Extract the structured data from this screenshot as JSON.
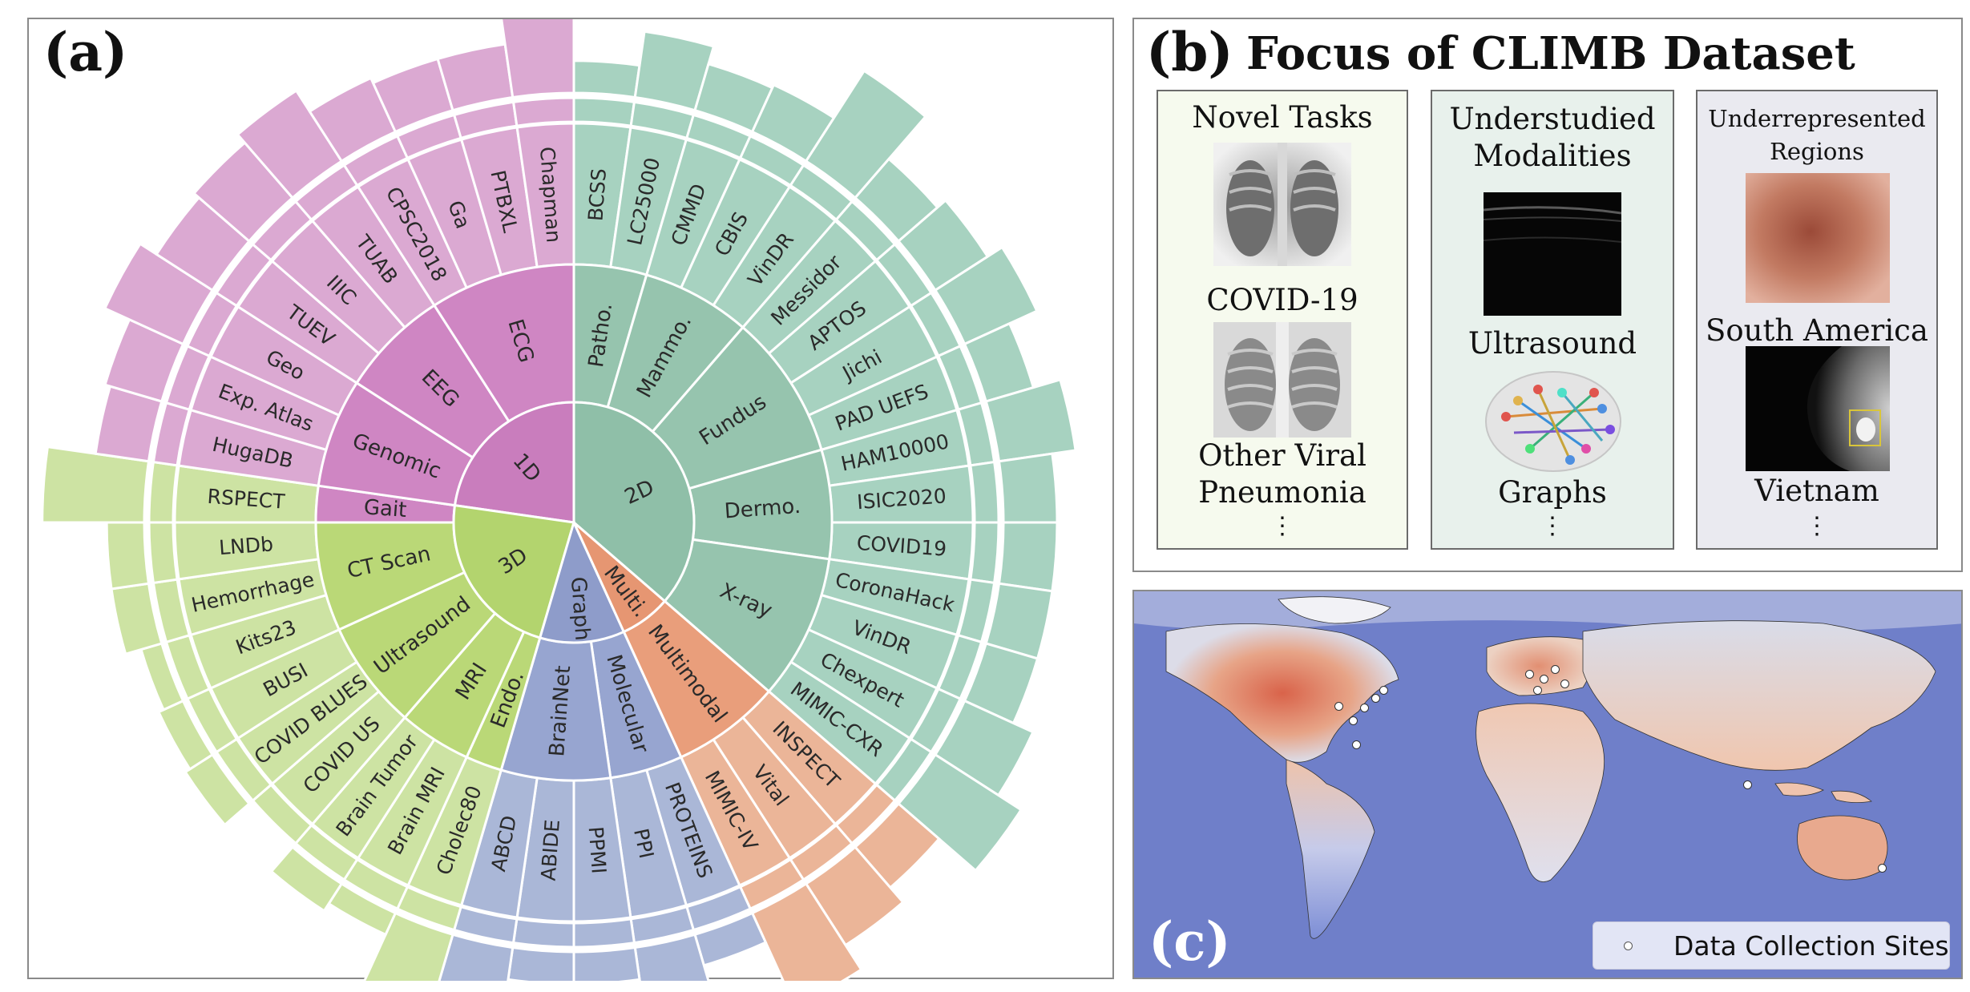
{
  "panel_a": {
    "label": "(a)",
    "sunburst": {
      "center": [
        {
          "label": "2D",
          "color": "#8fbfa8"
        },
        {
          "label": "1D",
          "color": "#c97dbd"
        },
        {
          "label": "3D",
          "color": "#b3d46e"
        },
        {
          "label": "Graph",
          "color": "#8e9cca"
        },
        {
          "label": "Multi.",
          "color": "#e69672"
        }
      ],
      "modalities": [
        {
          "label": "Patho.",
          "group": "2D"
        },
        {
          "label": "Mammo.",
          "group": "2D"
        },
        {
          "label": "Fundus",
          "group": "2D"
        },
        {
          "label": "Dermo.",
          "group": "2D"
        },
        {
          "label": "X-ray",
          "group": "2D"
        },
        {
          "label": "Multimodal",
          "group": "Multi."
        },
        {
          "label": "Molecular",
          "group": "Graph"
        },
        {
          "label": "BrainNet",
          "group": "Graph"
        },
        {
          "label": "Endo.",
          "group": "3D"
        },
        {
          "label": "MRI",
          "group": "3D"
        },
        {
          "label": "Ultrasound",
          "group": "3D"
        },
        {
          "label": "CT Scan",
          "group": "3D"
        },
        {
          "label": "Gait",
          "group": "1D"
        },
        {
          "label": "Genomic",
          "group": "1D"
        },
        {
          "label": "EEG",
          "group": "1D"
        },
        {
          "label": "ECG",
          "group": "1D"
        }
      ],
      "datasets": [
        {
          "label": "BCSS",
          "group": "2D"
        },
        {
          "label": "LC25000",
          "group": "2D"
        },
        {
          "label": "CMMD",
          "group": "2D"
        },
        {
          "label": "CBIS",
          "group": "2D"
        },
        {
          "label": "VinDR",
          "group": "2D"
        },
        {
          "label": "Messidor",
          "group": "2D"
        },
        {
          "label": "APTOS",
          "group": "2D"
        },
        {
          "label": "Jichi",
          "group": "2D"
        },
        {
          "label": "PAD UEFS",
          "group": "2D"
        },
        {
          "label": "HAM10000",
          "group": "2D"
        },
        {
          "label": "ISIC2020",
          "group": "2D"
        },
        {
          "label": "COVID19",
          "group": "2D"
        },
        {
          "label": "CoronaHack",
          "group": "2D"
        },
        {
          "label": "VinDR",
          "group": "2D"
        },
        {
          "label": "Chexpert",
          "group": "2D"
        },
        {
          "label": "MIMIC-CXR",
          "group": "2D"
        },
        {
          "label": "INSPECT",
          "group": "Multi."
        },
        {
          "label": "Vital",
          "group": "Multi."
        },
        {
          "label": "MIMIC-IV",
          "group": "Multi."
        },
        {
          "label": "PROTEINS",
          "group": "Graph"
        },
        {
          "label": "PPI",
          "group": "Graph"
        },
        {
          "label": "PPMI",
          "group": "Graph"
        },
        {
          "label": "ABIDE",
          "group": "Graph"
        },
        {
          "label": "ABCD",
          "group": "Graph"
        },
        {
          "label": "Cholec80",
          "group": "3D"
        },
        {
          "label": "Brain MRI",
          "group": "3D"
        },
        {
          "label": "Brain Tumor",
          "group": "3D"
        },
        {
          "label": "COVID US",
          "group": "3D"
        },
        {
          "label": "COVID BLUES",
          "group": "3D"
        },
        {
          "label": "BUSI",
          "group": "3D"
        },
        {
          "label": "Kits23",
          "group": "3D"
        },
        {
          "label": "Hemorrhage",
          "group": "3D"
        },
        {
          "label": "LNDb",
          "group": "3D"
        },
        {
          "label": "RSPECT",
          "group": "3D"
        },
        {
          "label": "HugaDB",
          "group": "1D"
        },
        {
          "label": "Exp. Atlas",
          "group": "1D"
        },
        {
          "label": "Geo",
          "group": "1D"
        },
        {
          "label": "TUEV",
          "group": "1D"
        },
        {
          "label": "IIIC",
          "group": "1D"
        },
        {
          "label": "TUAB",
          "group": "1D"
        },
        {
          "label": "CPSC2018",
          "group": "1D"
        },
        {
          "label": "Ga",
          "group": "1D"
        },
        {
          "label": "PTBXL",
          "group": "1D"
        },
        {
          "label": "Chapman",
          "group": "1D"
        }
      ],
      "bar_levels": [
        0.3,
        0.62,
        0.45,
        0.48,
        1.0,
        0.48,
        0.58,
        0.74,
        0.46,
        0.72,
        0.5,
        0.5,
        0.5,
        0.5,
        0.7,
        0.95,
        0.5,
        0.68,
        0.95,
        0.3,
        0.5,
        0.3,
        0.3,
        0.5,
        0.82,
        0.22,
        0.3,
        0.0,
        0.3,
        0.25,
        0.2,
        0.35,
        0.35,
        0.95,
        0.5,
        0.55,
        0.8,
        0.62,
        0.68,
        0.78,
        0.55,
        0.5,
        0.5,
        0.8
      ],
      "colors": {
        "2D": "#a7d2c0",
        "1D": "#dba9d2",
        "3D": "#cde3a3",
        "Graph": "#aab7d7",
        "Multi.": "#ebb598"
      }
    }
  },
  "panel_b": {
    "label": "(b)",
    "title": "Focus of CLIMB Dataset",
    "cards": [
      {
        "heading": "Novel Tasks",
        "items": [
          "COVID-19",
          "Other Viral Pneumonia"
        ],
        "ellipsis": "⋮"
      },
      {
        "heading": "Understudied Modalities",
        "items": [
          "Ultrasound",
          "Graphs"
        ],
        "ellipsis": "⋮"
      },
      {
        "heading": "Underrepresented Regions",
        "items": [
          "South America",
          "Vietnam"
        ],
        "ellipsis": "⋮"
      }
    ]
  },
  "panel_c": {
    "label": "(c)",
    "legend": "Data Collection Sites"
  }
}
